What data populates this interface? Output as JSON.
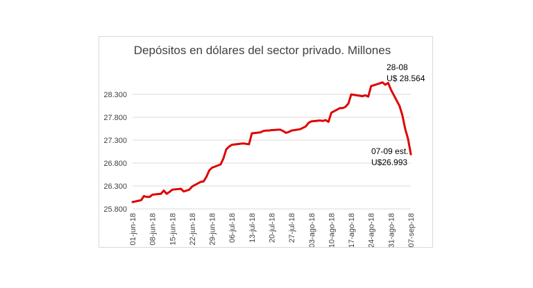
{
  "chart_data": {
    "type": "line",
    "title": "Depósitos en dólares del sector privado. Millones",
    "xlabel": "",
    "ylabel": "",
    "ylim": [
      25800,
      28800
    ],
    "yticks": [
      25800,
      26300,
      26800,
      27300,
      27800,
      28300
    ],
    "ytick_labels": [
      "25.800",
      "26.300",
      "26.800",
      "27.300",
      "27.800",
      "28.300"
    ],
    "grid": "horizontal",
    "legend": "none",
    "line_color": "#e00000",
    "x_tick_labels": [
      "01-jun-18",
      "08-jun-18",
      "15-jun-18",
      "22-jun-18",
      "29-jun-18",
      "06-jul-18",
      "13-jul-18",
      "20-jul-18",
      "27-jul-18",
      "03-ago-18",
      "10-ago-18",
      "17-ago-18",
      "24-ago-18",
      "31-ago-18",
      "07-sep-18"
    ],
    "x": [
      "2018-06-01",
      "2018-06-04",
      "2018-06-05",
      "2018-06-06",
      "2018-06-07",
      "2018-06-08",
      "2018-06-11",
      "2018-06-12",
      "2018-06-13",
      "2018-06-14",
      "2018-06-15",
      "2018-06-18",
      "2018-06-19",
      "2018-06-21",
      "2018-06-22",
      "2018-06-25",
      "2018-06-26",
      "2018-06-27",
      "2018-06-28",
      "2018-06-29",
      "2018-07-02",
      "2018-07-03",
      "2018-07-04",
      "2018-07-05",
      "2018-07-06",
      "2018-07-10",
      "2018-07-11",
      "2018-07-12",
      "2018-07-13",
      "2018-07-16",
      "2018-07-17",
      "2018-07-18",
      "2018-07-19",
      "2018-07-20",
      "2018-07-23",
      "2018-07-24",
      "2018-07-25",
      "2018-07-26",
      "2018-07-27",
      "2018-07-30",
      "2018-07-31",
      "2018-08-01",
      "2018-08-02",
      "2018-08-03",
      "2018-08-06",
      "2018-08-07",
      "2018-08-08",
      "2018-08-09",
      "2018-08-10",
      "2018-08-13",
      "2018-08-14",
      "2018-08-15",
      "2018-08-16",
      "2018-08-17",
      "2018-08-21",
      "2018-08-22",
      "2018-08-23",
      "2018-08-24",
      "2018-08-27",
      "2018-08-28",
      "2018-08-29",
      "2018-08-30",
      "2018-08-31",
      "2018-09-03",
      "2018-09-04",
      "2018-09-05",
      "2018-09-06",
      "2018-09-07"
    ],
    "series": [
      {
        "values": [
          25950,
          25990,
          26080,
          26060,
          26060,
          26110,
          26130,
          26200,
          26130,
          26170,
          26220,
          26240,
          26180,
          26220,
          26290,
          26390,
          26400,
          26500,
          26640,
          26700,
          26770,
          26900,
          27100,
          27160,
          27200,
          27230,
          27220,
          27210,
          27450,
          27470,
          27500,
          27510,
          27510,
          27520,
          27530,
          27500,
          27460,
          27480,
          27510,
          27540,
          27570,
          27600,
          27680,
          27710,
          27730,
          27720,
          27740,
          27700,
          27900,
          28000,
          28000,
          28030,
          28100,
          28300,
          28260,
          28280,
          28250,
          28480,
          28540,
          28564,
          28510,
          28550,
          28400,
          28050,
          27850,
          27550,
          27330,
          26993
        ]
      }
    ],
    "annotations": [
      {
        "line1": "28-08",
        "line2": "U$ 28.564"
      },
      {
        "line1": "07-09 est.",
        "line2": "U$26.993"
      }
    ]
  }
}
